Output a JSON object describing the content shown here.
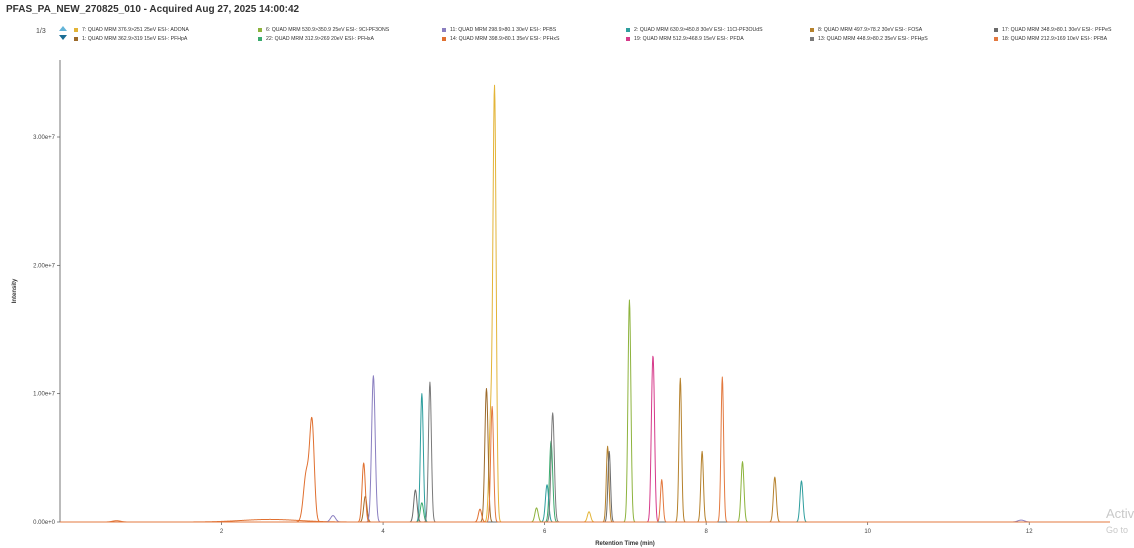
{
  "header": {
    "title": "PFAS_PA_NEW_270825_010 - Acquired Aug 27, 2025 14:00:42",
    "page": "1/3"
  },
  "watermark": {
    "line1": "Activ",
    "line2": "Go to"
  },
  "chart_data": {
    "type": "line",
    "title": "PFAS_PA_NEW_270825_010 - Acquired Aug 27, 2025 14:00:42",
    "xlabel": "Retention Time (min)",
    "ylabel": "Intensity",
    "xlim": [
      0,
      13
    ],
    "ylim": [
      0,
      36000000
    ],
    "x_ticks": [
      2,
      4,
      6,
      8,
      10,
      12
    ],
    "y_ticks": [
      0,
      10000000,
      20000000,
      30000000
    ],
    "y_tick_labels": [
      "0.00e+0",
      "1.00e+7",
      "2.00e+7",
      "3.00e+7"
    ],
    "grid": false,
    "legend_position": "top",
    "series": [
      {
        "name": "7: QUAD MRM 376.9>251 25eV ESI-: ADONA",
        "color": "#e3b437",
        "peaks": [
          [
            5.38,
            33700000,
            0.02
          ],
          [
            5.33,
            7500000,
            0.02
          ],
          [
            6.55,
            800000,
            0.02
          ]
        ]
      },
      {
        "name": "1: QUAD MRM 362.9>319 15eV ESI-: PFHpA",
        "color": "#9c6a2a",
        "peaks": [
          [
            5.28,
            10400000,
            0.02
          ],
          [
            3.78,
            2000000,
            0.02
          ]
        ]
      },
      {
        "name": "6: QUAD MRM 530.9>350.9 25eV ESI-: 9Cl-PF3ONS",
        "color": "#8db33d",
        "peaks": [
          [
            7.05,
            17300000,
            0.018
          ],
          [
            8.45,
            4700000,
            0.018
          ],
          [
            5.9,
            1100000,
            0.02
          ]
        ]
      },
      {
        "name": "22: QUAD MRM 312.9>269 20eV ESI-: PFHxA",
        "color": "#3aab6e",
        "peaks": [
          [
            6.08,
            6300000,
            0.02
          ],
          [
            4.48,
            1500000,
            0.02
          ]
        ]
      },
      {
        "name": "11: QUAD MRM 298.9>80.1 30eV ESI-: PFBS",
        "color": "#8a7fc0",
        "peaks": [
          [
            3.88,
            11400000,
            0.022
          ],
          [
            3.38,
            500000,
            0.03
          ],
          [
            11.9,
            150000,
            0.04
          ]
        ]
      },
      {
        "name": "14: QUAD MRM 398.9>80.1 35eV ESI-: PFHxS",
        "color": "#e07030",
        "peaks": [
          [
            3.12,
            7600000,
            0.028
          ],
          [
            3.05,
            3800000,
            0.035
          ],
          [
            3.76,
            4600000,
            0.02
          ],
          [
            5.2,
            1000000,
            0.02
          ]
        ]
      },
      {
        "name": "2: QUAD MRM 630.9>450.8 30eV ESI-: 11Cl-PF3OUdS",
        "color": "#2e9e9e",
        "peaks": [
          [
            4.48,
            10000000,
            0.018
          ],
          [
            9.18,
            3200000,
            0.018
          ],
          [
            6.03,
            2900000,
            0.02
          ]
        ]
      },
      {
        "name": "19: QUAD MRM 512.9>468.9 15eV ESI-: PFDA",
        "color": "#d63a8a",
        "peaks": [
          [
            7.35,
            8700000,
            0.016
          ],
          [
            7.33,
            7000000,
            0.016
          ]
        ]
      },
      {
        "name": "8: QUAD MRM 497.9>78.2 30eV ESI-: FOSA",
        "color": "#b5812c",
        "peaks": [
          [
            7.68,
            11200000,
            0.016
          ],
          [
            7.95,
            5500000,
            0.016
          ],
          [
            6.78,
            5900000,
            0.016
          ],
          [
            8.85,
            3500000,
            0.018
          ]
        ]
      },
      {
        "name": "13: QUAD MRM 448.9>80.2 35eV ESI-: PFHpS",
        "color": "#7a7a7a",
        "peaks": [
          [
            4.58,
            10900000,
            0.018
          ],
          [
            6.1,
            8500000,
            0.02
          ]
        ]
      },
      {
        "name": "17: QUAD MRM 348.9>80.1 30eV ESI-: PFPeS",
        "color": "#6b6b6b",
        "peaks": [
          [
            4.4,
            2500000,
            0.02
          ],
          [
            6.8,
            5500000,
            0.016
          ]
        ]
      },
      {
        "name": "18: QUAD MRM 212.9>169 10eV ESI-: PFBA",
        "color": "#e3793f",
        "peaks": [
          [
            5.35,
            9000000,
            0.018
          ],
          [
            8.2,
            11300000,
            0.016
          ],
          [
            7.45,
            3300000,
            0.016
          ]
        ]
      }
    ],
    "baseline_humps": [
      [
        2.6,
        200000,
        0.35,
        "#e07030"
      ],
      [
        0.7,
        100000,
        0.05,
        "#e07030"
      ]
    ]
  }
}
